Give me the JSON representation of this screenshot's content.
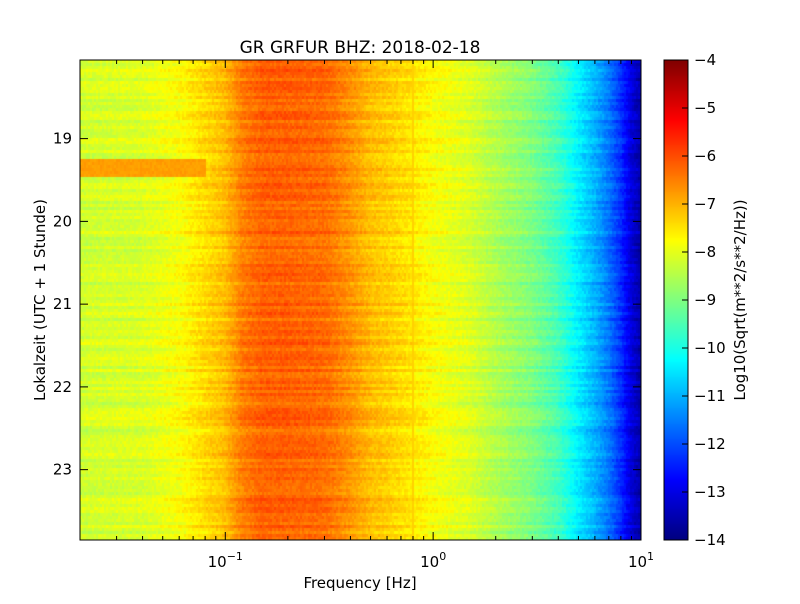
{
  "chart_data": {
    "type": "heatmap",
    "title": "GR GRFUR BHZ: 2018-02-18",
    "xlabel": "Frequency [Hz]",
    "ylabel": "Lokalzeit (UTC + 1 Stunde)",
    "x_scale": "log",
    "xlim": [
      0.02,
      10
    ],
    "x_ticks": [
      0.1,
      1,
      10
    ],
    "x_tick_labels": [
      {
        "base": "10",
        "exp": "−1"
      },
      {
        "base": "10",
        "exp": "0"
      },
      {
        "base": "10",
        "exp": "1"
      }
    ],
    "y_inverted": true,
    "ylim": [
      18.05,
      23.85
    ],
    "y_ticks": [
      19,
      20,
      21,
      22,
      23
    ],
    "y_tick_labels": [
      "19",
      "20",
      "21",
      "22",
      "23"
    ],
    "colorbar": {
      "label": "Log10(Sqrt(m**2/s**2/Hz))",
      "colormap": "jet",
      "vmin": -14,
      "vmax": -4,
      "ticks": [
        -4,
        -5,
        -6,
        -7,
        -8,
        -9,
        -10,
        -11,
        -12,
        -13,
        -14
      ],
      "tick_labels": [
        "−4",
        "−5",
        "−6",
        "−7",
        "−8",
        "−9",
        "−10",
        "−11",
        "−12",
        "−13",
        "−14"
      ]
    },
    "spectrum_profile": {
      "frequency_hz": [
        0.02,
        0.04,
        0.06,
        0.08,
        0.1,
        0.12,
        0.15,
        0.2,
        0.3,
        0.4,
        0.5,
        0.7,
        1.0,
        1.5,
        2.0,
        3.0,
        4.0,
        5.0,
        6.0,
        7.0,
        8.0,
        9.0,
        10.0
      ],
      "value": [
        -8.2,
        -8.1,
        -7.8,
        -7.4,
        -7.1,
        -6.5,
        -6.2,
        -6.2,
        -6.3,
        -6.7,
        -7.1,
        -7.4,
        -7.8,
        -8.1,
        -8.5,
        -9.0,
        -9.6,
        -10.4,
        -11.0,
        -11.6,
        -12.3,
        -13.1,
        -13.6
      ]
    },
    "features": [
      {
        "description": "warmer band at low frequencies",
        "time_range": [
          19.25,
          19.45
        ],
        "frequency_range": [
          0.02,
          0.08
        ],
        "value": -6.8
      },
      {
        "description": "narrow line near 0.8 Hz",
        "frequency_hz": 0.8,
        "value": -7.3
      }
    ]
  }
}
